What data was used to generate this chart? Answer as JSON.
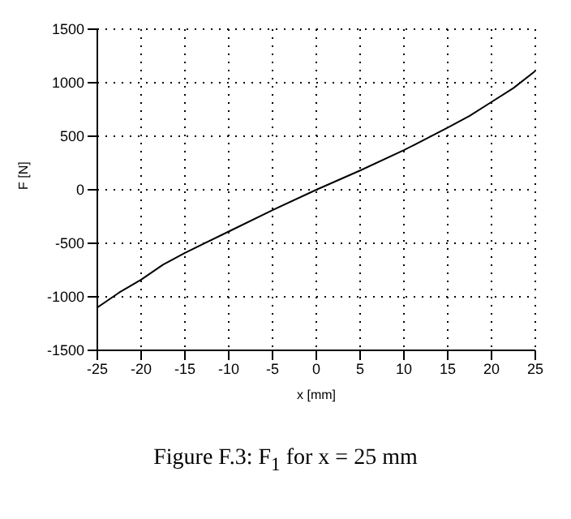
{
  "chart_data": {
    "type": "line",
    "xlabel": "x [mm]",
    "ylabel": "F [N]",
    "x": [
      -25,
      -22.5,
      -20,
      -17.5,
      -15,
      -10,
      -5,
      0,
      5,
      10,
      15,
      17.5,
      20,
      22.5,
      25
    ],
    "series": [
      {
        "color": "#000000",
        "values": [
          -1100,
          -960,
          -840,
          -700,
          -590,
          -390,
          -190,
          0,
          180,
          370,
          580,
          690,
          820,
          950,
          1110
        ]
      }
    ],
    "xlim": [
      -25,
      25
    ],
    "xticks": [
      -25,
      -20,
      -15,
      -10,
      -5,
      0,
      5,
      10,
      15,
      20,
      25
    ],
    "ylim": [
      -1500,
      1500
    ],
    "yticks": [
      -1500,
      -1000,
      -500,
      0,
      500,
      1000,
      1500
    ],
    "grid": true,
    "marker": "none",
    "line_style": "solid",
    "annotations": [
      "Figure F.3: F$_{1}$ for x = 25 mm"
    ]
  }
}
